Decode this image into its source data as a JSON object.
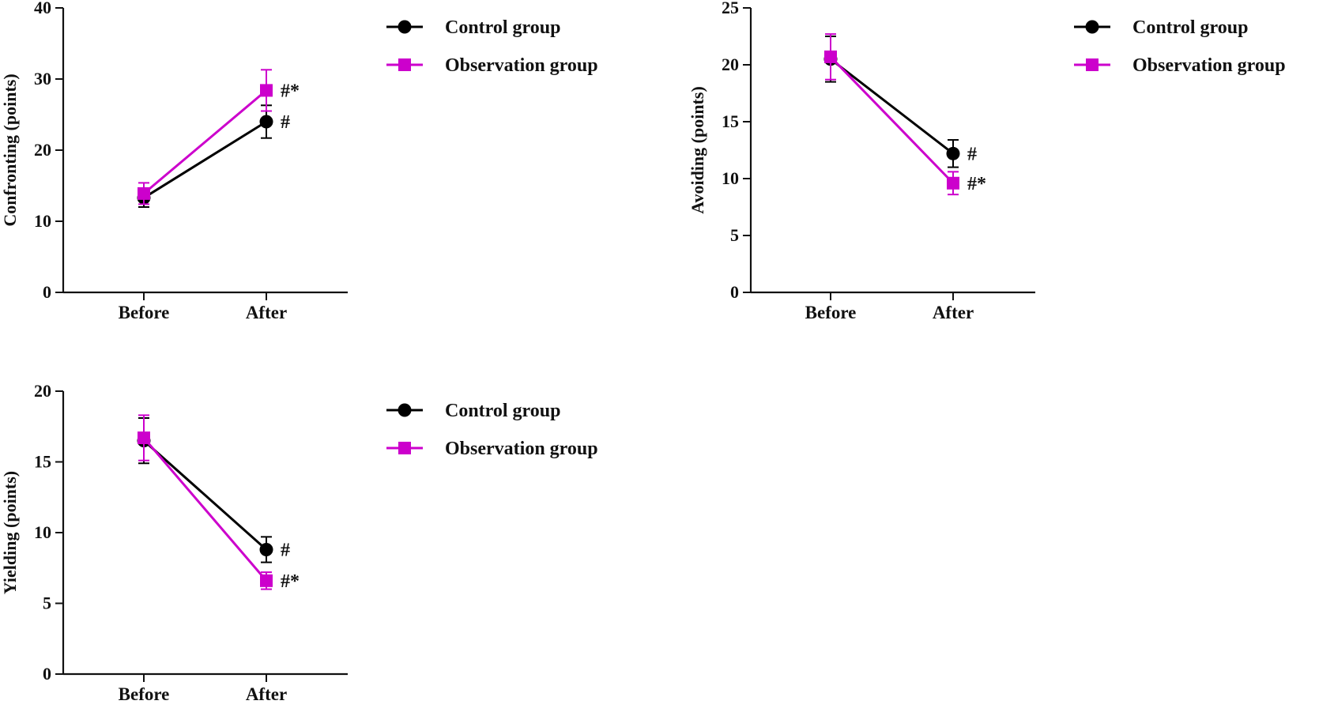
{
  "chart_data": [
    {
      "id": "confronting",
      "type": "line",
      "categories": [
        "Before",
        "After"
      ],
      "ylabel": "Confronting (points)",
      "xlabel": "",
      "ylim": [
        0,
        40
      ],
      "yticks": [
        0,
        10,
        20,
        30,
        40
      ],
      "series": [
        {
          "name": "Control group",
          "marker": "circle",
          "color": "#000000",
          "values": [
            13.3,
            24.0
          ],
          "errors": [
            1.3,
            2.3
          ],
          "annotations": [
            "",
            "#"
          ]
        },
        {
          "name": "Observation group",
          "marker": "square",
          "color": "#cc00cc",
          "values": [
            13.9,
            28.4
          ],
          "errors": [
            1.5,
            2.9
          ],
          "annotations": [
            "",
            "#*"
          ]
        }
      ],
      "legend": {
        "position": "top-right-outside",
        "entries": [
          "Control group",
          "Observation group"
        ]
      }
    },
    {
      "id": "avoiding",
      "type": "line",
      "categories": [
        "Before",
        "After"
      ],
      "ylabel": "Avoiding (points)",
      "xlabel": "",
      "ylim": [
        0,
        25
      ],
      "yticks": [
        0,
        5,
        10,
        15,
        20,
        25
      ],
      "series": [
        {
          "name": "Control group",
          "marker": "circle",
          "color": "#000000",
          "values": [
            20.5,
            12.2
          ],
          "errors": [
            2.0,
            1.2
          ],
          "annotations": [
            "",
            "#"
          ]
        },
        {
          "name": "Observation group",
          "marker": "square",
          "color": "#cc00cc",
          "values": [
            20.7,
            9.6
          ],
          "errors": [
            2.0,
            1.0
          ],
          "annotations": [
            "",
            "#*"
          ]
        }
      ],
      "legend": {
        "position": "top-right-outside",
        "entries": [
          "Control group",
          "Observation group"
        ]
      }
    },
    {
      "id": "yielding",
      "type": "line",
      "categories": [
        "Before",
        "After"
      ],
      "ylabel": "Yielding (points)",
      "xlabel": "",
      "ylim": [
        0,
        20
      ],
      "yticks": [
        0,
        5,
        10,
        15,
        20
      ],
      "series": [
        {
          "name": "Control group",
          "marker": "circle",
          "color": "#000000",
          "values": [
            16.5,
            8.8
          ],
          "errors": [
            1.6,
            0.9
          ],
          "annotations": [
            "",
            "#"
          ]
        },
        {
          "name": "Observation group",
          "marker": "square",
          "color": "#cc00cc",
          "values": [
            16.7,
            6.6
          ],
          "errors": [
            1.6,
            0.6
          ],
          "annotations": [
            "",
            "#*"
          ]
        }
      ],
      "legend": {
        "position": "top-right-outside",
        "entries": [
          "Control group",
          "Observation group"
        ]
      }
    }
  ]
}
